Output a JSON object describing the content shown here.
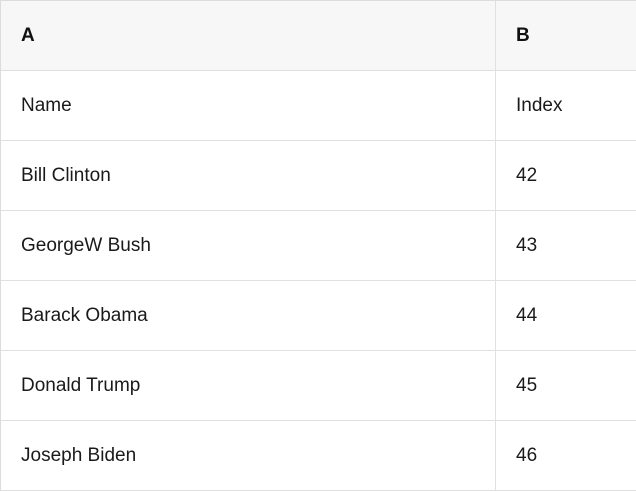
{
  "table": {
    "columns": [
      {
        "label": "A"
      },
      {
        "label": "B"
      }
    ],
    "rows": [
      {
        "A": "Name",
        "B": "Index"
      },
      {
        "A": "Bill Clinton",
        "B": "42"
      },
      {
        "A": "GeorgeW Bush",
        "B": "43"
      },
      {
        "A": "Barack Obama",
        "B": "44"
      },
      {
        "A": "Donald Trump",
        "B": "45"
      },
      {
        "A": "Joseph Biden",
        "B": "46"
      }
    ],
    "colors": {
      "header_background": "#f7f7f7",
      "row_background": "#ffffff",
      "border": "#e0e0e0",
      "text": "#1a1a1a"
    }
  }
}
